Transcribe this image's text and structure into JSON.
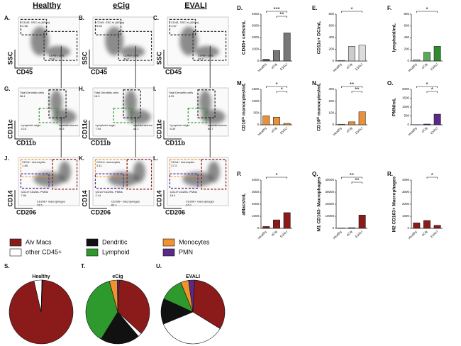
{
  "flow": {
    "columns": [
      "Healthy",
      "eCig",
      "EVALI"
    ],
    "rows": [
      {
        "xlabel": "CD45",
        "ylabel": "SSC",
        "panels": [
          {
            "letter": "A.",
            "gates": [
              {
                "label": "CD45- SSC hi (AECs)",
                "value": "2.56"
              },
              {
                "label": "CD45+ cells",
                "value": "79.8"
              }
            ]
          },
          {
            "letter": "B.",
            "gates": [
              {
                "label": "CD45- SSC hi (AECs)",
                "value": "8.62"
              },
              {
                "label": "CD45+ cells",
                "value": "49.2"
              }
            ]
          },
          {
            "letter": "C.",
            "gates": [
              {
                "label": "CD45- SSC hi (AECs)",
                "value": "4.87"
              },
              {
                "label": "CD45+ cells",
                "value": "92.7"
              }
            ]
          }
        ]
      },
      {
        "xlabel": "CD11b",
        "ylabel": "CD11c",
        "panels": [
          {
            "letter": "G.",
            "gates": [
              {
                "label": "Total Dendritic cells",
                "value": "58.4"
              },
              {
                "label": "Lymphoid origin",
                "value": "4.14"
              },
              {
                "label": "myeloid-monos",
                "value": "36.5"
              }
            ]
          },
          {
            "letter": "H.",
            "gates": [
              {
                "label": "Total Dendritic cells",
                "value": "18.0"
              },
              {
                "label": "Lymphoid origin",
                "value": "7.94"
              },
              {
                "label": "myeloid-monos",
                "value": "48.1"
              }
            ]
          },
          {
            "letter": "I.",
            "gates": [
              {
                "label": "Total Dendritic cells",
                "value": "6.25"
              },
              {
                "label": "Lymphoid origin",
                "value": "6.30"
              },
              {
                "label": "myeloid-monos",
                "value": "80.7"
              }
            ]
          }
        ]
      },
      {
        "xlabel": "CD206",
        "ylabel": "CD14",
        "panels": [
          {
            "letter": "J.",
            "gates": [
              {
                "label": "CD14+ monocytes",
                "value": "1.85"
              },
              {
                "label": "CD14+CD206- PMNs",
                "value": "7.84"
              },
              {
                "label": "CD206+ macrophages",
                "value": "73.5"
              }
            ]
          },
          {
            "letter": "K.",
            "gates": [
              {
                "label": "CD14+ monocytes",
                "value": "3.11"
              },
              {
                "label": "CD14+CD206- PMNs",
                "value": "2.14"
              },
              {
                "label": "CD206+ macrophages",
                "value": "82.1"
              }
            ]
          },
          {
            "letter": "L.",
            "gates": [
              {
                "label": "CD14+ monocytes",
                "value": "27.3"
              },
              {
                "label": "CD14+CD206- PMNs",
                "value": "18.0"
              },
              {
                "label": "CD206+ macrophages",
                "value": "47.0"
              }
            ]
          }
        ]
      }
    ]
  },
  "legend": [
    {
      "name": "Alv Macs",
      "color": "#8b1a1a"
    },
    {
      "name": "other CD45+",
      "color": "#ffffff"
    },
    {
      "name": "Dendritic",
      "color": "#111111"
    },
    {
      "name": "Lymphoid",
      "color": "#2e9a2e"
    },
    {
      "name": "Monocytes",
      "color": "#f0922e"
    },
    {
      "name": "PMN",
      "color": "#5b2a86"
    }
  ],
  "chart_data": [
    {
      "type": "bar",
      "panel": "D.",
      "ylabel": "CD45+ cells/mL",
      "categories": [
        "Healthy",
        "eCig",
        "EVALI"
      ],
      "values": [
        150,
        900,
        2400
      ],
      "colors": [
        "#555555",
        "#777777",
        "#777777"
      ],
      "ylim": [
        0,
        4000
      ],
      "yticks": [
        0,
        1000,
        2000,
        3000,
        4000
      ],
      "annotations": [
        "***",
        "**"
      ]
    },
    {
      "type": "bar",
      "panel": "E.",
      "ylabel": "CD11c+ DC/mL",
      "categories": [
        "Healthy",
        "eCig",
        "EVALI"
      ],
      "values": [
        10,
        250,
        270
      ],
      "colors": [
        "#dddddd",
        "#cccccc",
        "#dddddd"
      ],
      "ylim": [
        0,
        800
      ],
      "yticks": [
        0,
        200,
        400,
        600,
        800
      ],
      "annotations": [
        "*"
      ]
    },
    {
      "type": "bar",
      "panel": "F.",
      "ylabel": "lymphoid/mL",
      "categories": [
        "Healthy",
        "eCig",
        "EVALI"
      ],
      "values": [
        20,
        150,
        250
      ],
      "colors": [
        "#9bc59b",
        "#5aa85a",
        "#2e8b2e"
      ],
      "ylim": [
        0,
        800
      ],
      "yticks": [
        0,
        200,
        400,
        600,
        800
      ],
      "annotations": [
        "*"
      ]
    },
    {
      "type": "bar",
      "panel": "M.",
      "ylabel": "CD16ˡᵒ monocytes/mL",
      "categories": [
        "Healthy",
        "eCig",
        "EVALI"
      ],
      "values": [
        380,
        320,
        60
      ],
      "colors": [
        "#e8913a",
        "#e8913a",
        "#e8913a"
      ],
      "ylim": [
        0,
        1500
      ],
      "yticks": [
        0,
        500,
        1000,
        1500
      ],
      "annotations": [
        "*",
        "*"
      ]
    },
    {
      "type": "bar",
      "panel": "N.",
      "ylabel": "CD16ʰⁱ monocytes/mL",
      "categories": [
        "Healthy",
        "eCig",
        "EVALI"
      ],
      "values": [
        5,
        25,
        110
      ],
      "colors": [
        "#e8913a",
        "#e8913a",
        "#e8913a"
      ],
      "ylim": [
        0,
        300
      ],
      "yticks": [
        0,
        100,
        200,
        300
      ],
      "annotations": [
        "**",
        "**"
      ]
    },
    {
      "type": "bar",
      "panel": "O.",
      "ylabel": "PMN/mL",
      "categories": [
        "Healthy",
        "eCig",
        "EVALI"
      ],
      "values": [
        5,
        40,
        600
      ],
      "colors": [
        "#5b2a86",
        "#5b2a86",
        "#5b2a86"
      ],
      "ylim": [
        0,
        2000
      ],
      "yticks": [
        0,
        500,
        1000,
        1500,
        2000
      ],
      "annotations": [
        "*",
        "*"
      ]
    },
    {
      "type": "bar",
      "panel": "P.",
      "ylabel": "aMacs/mL",
      "categories": [
        "Healthy",
        "eCig",
        "EVALI"
      ],
      "values": [
        150,
        700,
        1300
      ],
      "colors": [
        "#8b1a1a",
        "#8b1a1a",
        "#8b1a1a"
      ],
      "ylim": [
        0,
        4000
      ],
      "yticks": [
        0,
        1000,
        2000,
        3000,
        4000
      ],
      "annotations": [
        "*"
      ]
    },
    {
      "type": "bar",
      "panel": "Q.",
      "ylabel": "M1 CD163- Macrophages",
      "categories": [
        "Healthy",
        "eCig",
        "EVALI"
      ],
      "values": [
        200,
        500,
        11000
      ],
      "colors": [
        "#8b1a1a",
        "#8b1a1a",
        "#8b1a1a"
      ],
      "ylim": [
        0,
        40000
      ],
      "yticks": [
        0,
        10000,
        20000,
        30000,
        40000
      ],
      "annotations": [
        "**",
        "**"
      ]
    },
    {
      "type": "bar",
      "panel": "R.",
      "ylabel": "M2 CD163+ Macrophages",
      "categories": [
        "Healthy",
        "eCig",
        "EVALI"
      ],
      "values": [
        450,
        650,
        250
      ],
      "colors": [
        "#8b1a1a",
        "#8b1a1a",
        "#8b1a1a"
      ],
      "ylim": [
        0,
        4000
      ],
      "yticks": [
        0,
        1000,
        2000,
        3000,
        4000
      ],
      "annotations": [
        "*"
      ]
    },
    {
      "type": "pie",
      "panel": "S.",
      "title": "Healthy",
      "values": [
        96,
        4,
        0.1,
        0.1,
        0.1,
        0.1
      ]
    },
    {
      "type": "pie",
      "panel": "T.",
      "title": "eCig",
      "values": [
        36,
        2,
        20,
        37,
        4,
        1
      ]
    },
    {
      "type": "pie",
      "panel": "U.",
      "title": "EVALI",
      "values": [
        33,
        35,
        13,
        12,
        4,
        3
      ]
    }
  ]
}
